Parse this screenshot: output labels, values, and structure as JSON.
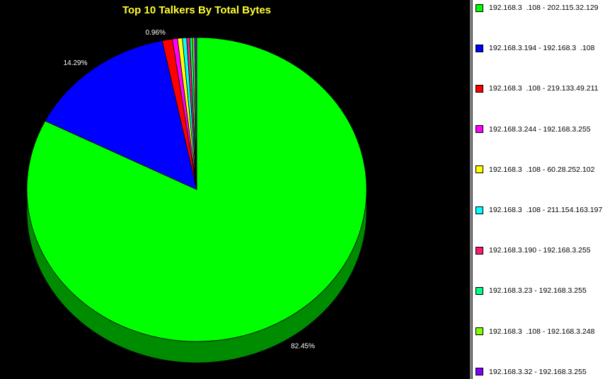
{
  "chart_data": {
    "type": "pie",
    "title": "Top 10 Talkers By Total Bytes",
    "slices": [
      {
        "name": "192.168.3  .108 - 202.115.32.129",
        "value": 82.45,
        "label": "82.45%",
        "color": "#00ff00",
        "side_color": "#008c00"
      },
      {
        "name": "192.168.3.194 - 192.168.3  .108",
        "value": 14.29,
        "label": "14.29%",
        "color": "#0000ff",
        "side_color": "#00008c"
      },
      {
        "name": "192.168.3  .108 - 219.133.49.211",
        "value": 0.96,
        "label": "0.96%",
        "color": "#ff0000",
        "side_color": "#8c0000"
      },
      {
        "name": "192.168.3.244 - 192.168.3.255",
        "value": 0.5,
        "label": "",
        "color": "#ff00ff",
        "side_color": "#8c008c"
      },
      {
        "name": "192.168.3  .108 - 60.28.252.102",
        "value": 0.45,
        "label": "",
        "color": "#ffff00",
        "side_color": "#8c8c00"
      },
      {
        "name": "192.168.3  .108 - 211.154.163.197",
        "value": 0.4,
        "label": "",
        "color": "#00ffff",
        "side_color": "#008c8c"
      },
      {
        "name": "192.168.3.190 - 192.168.3.255",
        "value": 0.3,
        "label": "",
        "color": "#ff1a75",
        "side_color": "#8c0e40"
      },
      {
        "name": "192.168.3.23 - 192.168.3.255",
        "value": 0.25,
        "label": "",
        "color": "#00ff80",
        "side_color": "#008c46"
      },
      {
        "name": "192.168.3  .108 - 192.168.3.248",
        "value": 0.2,
        "label": "",
        "color": "#80ff00",
        "side_color": "#468c00"
      },
      {
        "name": "192.168.3.32 - 192.168.3.255",
        "value": 0.2,
        "label": "",
        "color": "#8000ff",
        "side_color": "#46008c"
      }
    ],
    "legend_position": "right"
  },
  "colors": {
    "background": "#000000",
    "title": "#ffff33",
    "legend_background": "#ffffff"
  }
}
